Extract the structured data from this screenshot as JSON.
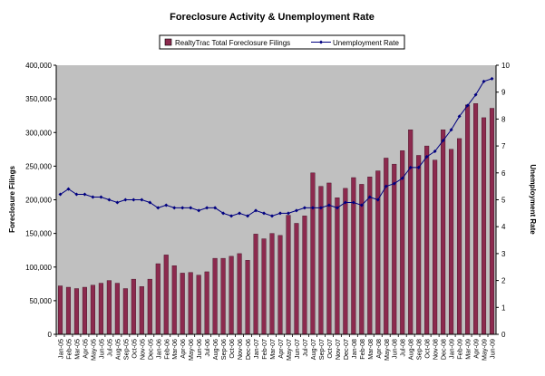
{
  "chart_data": {
    "type": "bar+line",
    "title": "Foreclosure Activity & Unemployment Rate",
    "legend_position": "top",
    "grid": false,
    "colors": {
      "plot_bg": "#c0c0c0",
      "bar": "#8c2a4e",
      "line": "#000080"
    },
    "xlabel": "",
    "ylabel_left": "Foreclosure Filings",
    "ylabel_right": "Unemployment Rate",
    "ylim_left": [
      0,
      400000
    ],
    "ylim_right": [
      0,
      10
    ],
    "yticks_left": [
      "0",
      "50,000",
      "100,000",
      "150,000",
      "200,000",
      "250,000",
      "300,000",
      "350,000",
      "400,000"
    ],
    "yticks_right": [
      "0",
      "1",
      "2",
      "3",
      "4",
      "5",
      "6",
      "7",
      "8",
      "9",
      "10"
    ],
    "categories": [
      "Jan-05",
      "Feb-05",
      "Mar-05",
      "Apr-05",
      "May-05",
      "Jun-05",
      "Jul-05",
      "Aug-05",
      "Sep-05",
      "Oct-05",
      "Nov-05",
      "Dec-05",
      "Jan-06",
      "Feb-06",
      "Mar-06",
      "Apr-06",
      "May-06",
      "Jun-06",
      "Jul-06",
      "Aug-06",
      "Sep-06",
      "Oct-06",
      "Nov-06",
      "Dec-06",
      "Jan-07",
      "Feb-07",
      "Mar-07",
      "Apr-07",
      "May-07",
      "Jun-07",
      "Jul-07",
      "Aug-07",
      "Sep-07",
      "Oct-07",
      "Nov-07",
      "Dec-07",
      "Jan-08",
      "Feb-08",
      "Mar-08",
      "Apr-08",
      "May-08",
      "Jun-08",
      "Jul-08",
      "Aug-08",
      "Sep-08",
      "Oct-08",
      "Nov-08",
      "Dec-08",
      "Jan-09",
      "Feb-09",
      "Mar-09",
      "Apr-09",
      "May-09",
      "Jun-09"
    ],
    "series": [
      {
        "name": "RealtyTrac Total Foreclosure Filings",
        "type": "bar",
        "axis": "left",
        "values": [
          72000,
          70000,
          68000,
          70000,
          73000,
          76000,
          80000,
          76000,
          68000,
          82000,
          71000,
          82000,
          105000,
          118000,
          102000,
          91000,
          92000,
          88000,
          93000,
          113000,
          113000,
          116000,
          120000,
          110000,
          149000,
          142000,
          150000,
          147000,
          177000,
          165000,
          176000,
          240000,
          220000,
          225000,
          203000,
          217000,
          233000,
          223000,
          234000,
          243000,
          262000,
          253000,
          273000,
          304000,
          266000,
          280000,
          259000,
          304000,
          275000,
          291000,
          341000,
          343000,
          322000,
          336000
        ]
      },
      {
        "name": "Unemployment Rate",
        "type": "line",
        "axis": "right",
        "values": [
          5.2,
          5.4,
          5.2,
          5.2,
          5.1,
          5.1,
          5.0,
          4.9,
          5.0,
          5.0,
          5.0,
          4.9,
          4.7,
          4.8,
          4.7,
          4.7,
          4.7,
          4.6,
          4.7,
          4.7,
          4.5,
          4.4,
          4.5,
          4.4,
          4.6,
          4.5,
          4.4,
          4.5,
          4.5,
          4.6,
          4.7,
          4.7,
          4.7,
          4.8,
          4.7,
          4.9,
          4.9,
          4.8,
          5.1,
          5.0,
          5.5,
          5.6,
          5.8,
          6.2,
          6.2,
          6.6,
          6.8,
          7.2,
          7.6,
          8.1,
          8.5,
          8.9,
          9.4,
          9.5
        ]
      }
    ]
  }
}
